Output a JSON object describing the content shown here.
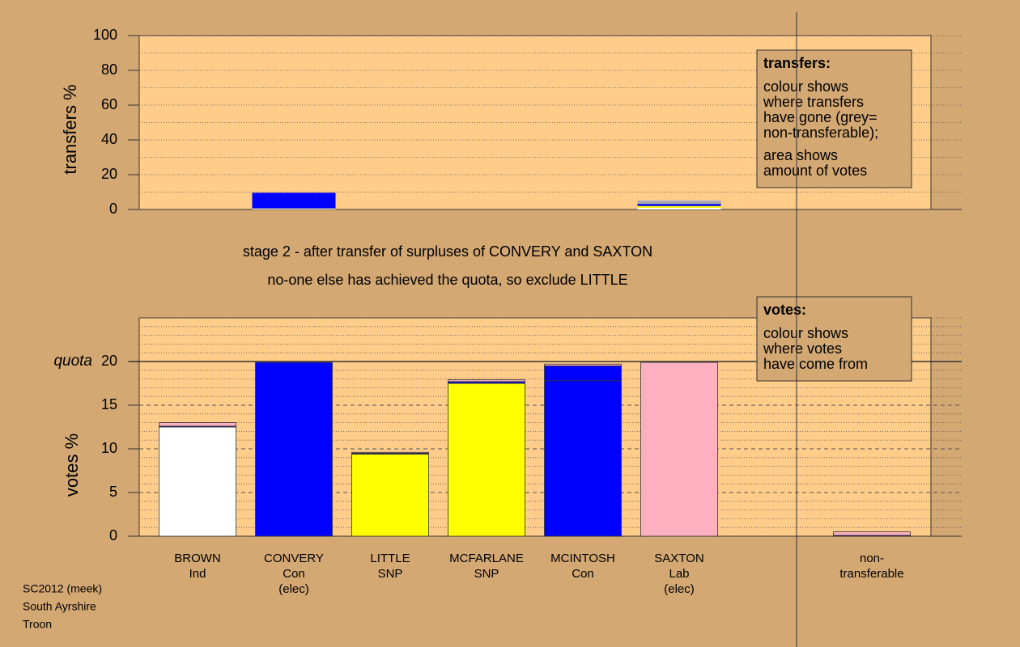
{
  "chart_data": [
    {
      "type": "stacked-bar",
      "ylabel": "transfers %",
      "ylim": [
        0,
        100
      ],
      "yticks": [
        0,
        20,
        40,
        60,
        80,
        100
      ],
      "minor_grid": [
        10,
        20,
        30,
        40,
        50,
        60,
        70,
        80,
        90,
        100
      ],
      "series": [
        {
          "color": "#ffffff",
          "values": [
            0,
            0.4,
            0,
            0,
            0,
            1.0,
            0
          ]
        },
        {
          "color": "#ffff00",
          "values": [
            0,
            0.2,
            0,
            0,
            0,
            1.0,
            0
          ]
        },
        {
          "color": "#0000ff",
          "values": [
            0,
            9.0,
            0,
            0,
            0,
            1.2,
            0
          ]
        },
        {
          "color": "#aaaaaa",
          "values": [
            0,
            0,
            0,
            0,
            0,
            1.4,
            0
          ]
        },
        {
          "color": "#8899ff",
          "values": [
            0,
            0,
            0,
            0,
            0,
            0.4,
            0
          ]
        }
      ],
      "legend_box": {
        "title": "transfers:",
        "paragraphs": [
          [
            "colour shows",
            "where transfers",
            "have gone (grey=",
            "non-transferable);"
          ],
          [
            "area shows",
            "amount of votes"
          ]
        ]
      }
    },
    {
      "type": "stacked-bar",
      "title": [
        "stage 2 - after transfer of surpluses of CONVERY and SAXTON",
        "no-one else has achieved the quota, so exclude LITTLE"
      ],
      "ylabel": "votes %",
      "ylim": [
        0,
        25
      ],
      "yticks": [
        0,
        5,
        10,
        15,
        20
      ],
      "quota": 20,
      "quota_label": "quota",
      "minor_grid": [
        1,
        2,
        3,
        4,
        6,
        7,
        8,
        9,
        11,
        12,
        13,
        14,
        16,
        17,
        18,
        19,
        21,
        22,
        23,
        24,
        25
      ],
      "categories": [
        [
          "BROWN",
          "Ind"
        ],
        [
          "CONVERY",
          "Con",
          "(elec)"
        ],
        [
          "LITTLE",
          "SNP"
        ],
        [
          "MCFARLANE",
          "SNP"
        ],
        [
          "MCINTOSH",
          "Con"
        ],
        [
          "SAXTON",
          "Lab",
          "(elec)"
        ],
        [
          "non-",
          "transferable"
        ]
      ],
      "series": [
        {
          "color": "#ffffff",
          "values": [
            12.5,
            0,
            0,
            0,
            0,
            0,
            0
          ]
        },
        {
          "color": "#ffff00",
          "values": [
            0,
            0,
            9.4,
            0,
            0,
            0,
            0
          ]
        },
        {
          "color": "#ffff00",
          "values": [
            0,
            0,
            0,
            17.5,
            0,
            0,
            0
          ]
        },
        {
          "color": "#0000ff",
          "values": [
            0,
            0,
            0,
            0,
            17.8,
            0,
            0
          ]
        },
        {
          "color": "#0000ff",
          "values": [
            0.1,
            19.9,
            0.1,
            0.2,
            1.7,
            0,
            0.1
          ]
        },
        {
          "color": "#ffb0c0",
          "values": [
            0.4,
            0,
            0.1,
            0.2,
            0.2,
            19.9,
            0.4
          ]
        }
      ],
      "legend_box": {
        "title": "votes:",
        "paragraphs": [
          [
            "colour shows",
            "where votes",
            "have come from"
          ]
        ]
      }
    }
  ],
  "footer": [
    "SC2012 (meek)",
    "South Ayrshire",
    "Troon"
  ]
}
